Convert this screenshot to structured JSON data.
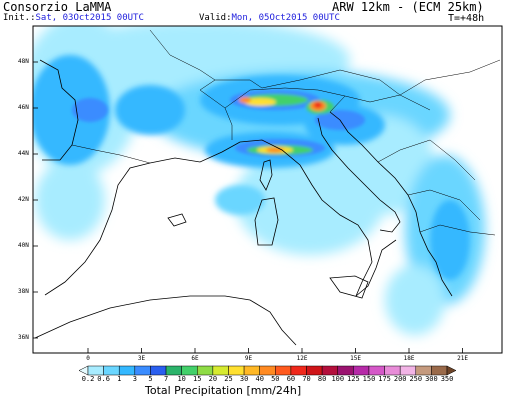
{
  "header": {
    "agency": "Consorzio LaMMA",
    "model": "ARW 12km - (ECM 25km)",
    "init_label": "Init.:",
    "init_value": "Sat, 03Oct2015 00UTC",
    "valid_label": "Valid:",
    "valid_value": "Mon, 05Oct2015 00UTC",
    "lead_time": "T=+48h"
  },
  "map": {
    "latitude_labels": [
      "48N",
      "46N",
      "44N",
      "42N",
      "40N",
      "38N",
      "36N"
    ],
    "longitude_labels": [
      "0",
      "3E",
      "6E",
      "9E",
      "12E",
      "15E",
      "18E",
      "21E"
    ]
  },
  "legend": {
    "title": "Total Precipitation [mm/24h]",
    "values": [
      "0.2",
      "0.6",
      "1",
      "3",
      "5",
      "7",
      "10",
      "15",
      "20",
      "25",
      "30",
      "40",
      "50",
      "60",
      "70",
      "80",
      "100",
      "125",
      "150",
      "175",
      "200",
      "250",
      "300",
      "350"
    ],
    "colors": [
      "#e6fbff",
      "#a8ecff",
      "#6ad6ff",
      "#34b8ff",
      "#3a8cff",
      "#2a5ff0",
      "#2bb36a",
      "#43d06a",
      "#8fdc45",
      "#d6ea30",
      "#ffe030",
      "#ffb825",
      "#ff8a22",
      "#ff5a1e",
      "#f0281b",
      "#cf1418",
      "#b40f3c",
      "#9b1370",
      "#b62aa8",
      "#d558c8",
      "#e88cd8",
      "#f2b4e6",
      "#c59a7e",
      "#9a6a4a",
      "#6e4428"
    ]
  }
}
